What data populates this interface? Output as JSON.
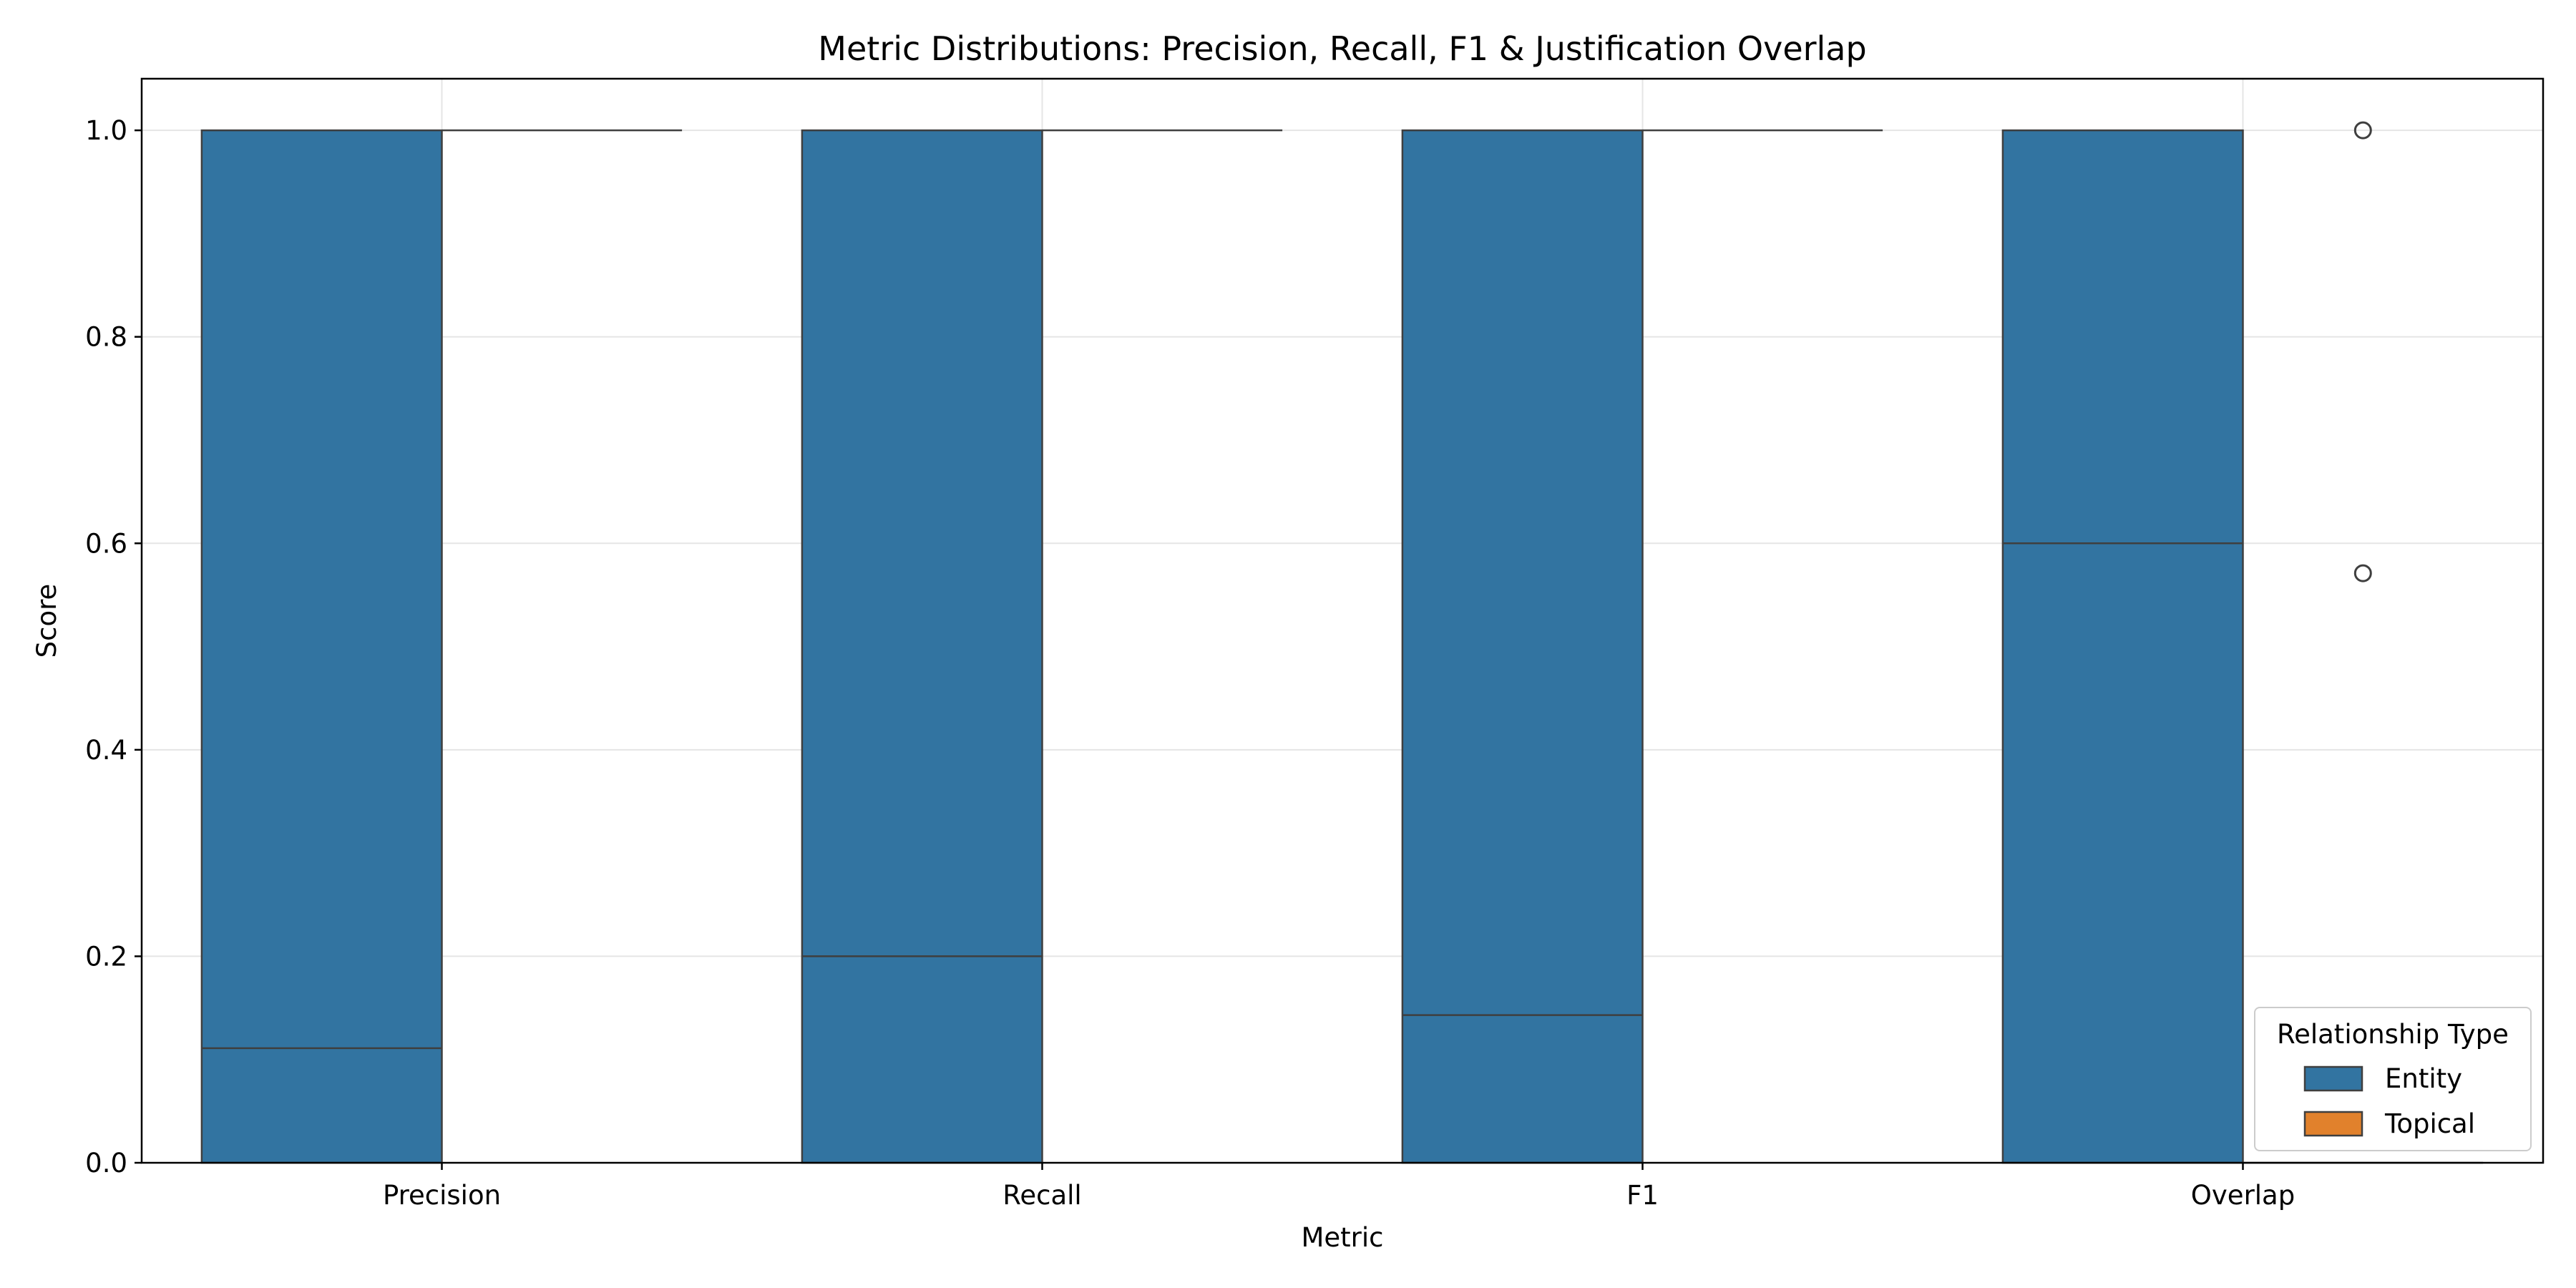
{
  "chart_data": {
    "type": "boxplot",
    "title": "Metric Distributions: Precision, Recall, F1 & Justification Overlap",
    "xlabel": "Metric",
    "ylabel": "Score",
    "ylim": [
      0.0,
      1.05
    ],
    "yticks": [
      "0.0",
      "0.2",
      "0.4",
      "0.6",
      "0.8",
      "1.0"
    ],
    "categories": [
      "Precision",
      "Recall",
      "F1",
      "Overlap"
    ],
    "grid": true,
    "legend": {
      "title": "Relationship Type",
      "placement": "lower-right"
    },
    "series": [
      {
        "name": "Entity",
        "color": "#3274a1",
        "boxes": [
          {
            "q1": 0.0,
            "median": 0.111,
            "q3": 1.0
          },
          {
            "q1": 0.0,
            "median": 0.2,
            "q3": 1.0
          },
          {
            "q1": 0.0,
            "median": 0.143,
            "q3": 1.0
          },
          {
            "q1": 0.0,
            "median": 0.6,
            "q3": 1.0
          }
        ]
      },
      {
        "name": "Topical",
        "color": "#e1812c",
        "boxes": [
          {
            "q1": 1.0,
            "median": 1.0,
            "q3": 1.0
          },
          {
            "q1": 1.0,
            "median": 1.0,
            "q3": 1.0
          },
          {
            "q1": 1.0,
            "median": 1.0,
            "q3": 1.0
          },
          {
            "q1": 0.0,
            "median": 0.0,
            "q3": 0.0
          }
        ]
      }
    ],
    "outliers": [
      {
        "category": "Overlap",
        "series": "Topical",
        "value": 1.0
      },
      {
        "category": "Overlap",
        "series": "Topical",
        "value": 0.571
      }
    ]
  }
}
